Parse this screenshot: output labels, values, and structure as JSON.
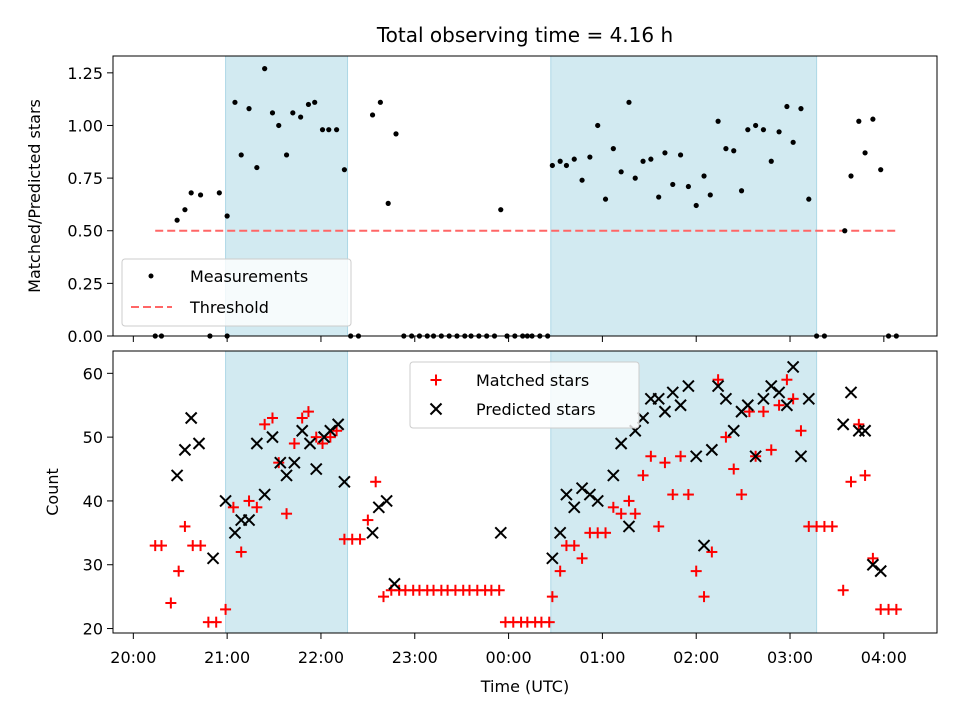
{
  "chart_data": [
    {
      "type": "scatter",
      "title": "Total observing time = 4.16 h",
      "xlabel": "",
      "ylabel": "Matched/Predicted stars",
      "ylim": [
        0,
        1.33
      ],
      "yticks": [
        "0.00",
        "0.25",
        "0.50",
        "0.75",
        "1.00",
        "1.25"
      ],
      "legend": {
        "placement": "lower-left",
        "entries": [
          "Measurements",
          "Threshold"
        ]
      },
      "colors": {
        "measurements": "#000000",
        "threshold": "#ff6666",
        "shade": "#add8e6"
      },
      "shaded_intervals": [
        [
          "20:59",
          "22:17"
        ],
        [
          "00:27",
          "03:17"
        ]
      ],
      "threshold": {
        "value": 0.5,
        "x": [
          "20:14",
          "04:08"
        ]
      },
      "measurements": [
        [
          "20:14",
          0
        ],
        [
          "20:18",
          0
        ],
        [
          "20:28",
          0.55
        ],
        [
          "20:33",
          0.6
        ],
        [
          "20:37",
          0.68
        ],
        [
          "20:43",
          0.67
        ],
        [
          "20:49",
          0
        ],
        [
          "20:55",
          0.68
        ],
        [
          "21:00",
          0
        ],
        [
          "21:00",
          0.57
        ],
        [
          "21:05",
          1.11
        ],
        [
          "21:09",
          0.86
        ],
        [
          "21:14",
          1.08
        ],
        [
          "21:19",
          0.8
        ],
        [
          "21:24",
          1.27
        ],
        [
          "21:29",
          1.06
        ],
        [
          "21:33",
          1.0
        ],
        [
          "21:38",
          0.86
        ],
        [
          "21:42",
          1.06
        ],
        [
          "21:47",
          1.04
        ],
        [
          "21:52",
          1.1
        ],
        [
          "21:56",
          1.11
        ],
        [
          "22:01",
          0.98
        ],
        [
          "22:05",
          0.98
        ],
        [
          "22:10",
          0.98
        ],
        [
          "22:15",
          0.79
        ],
        [
          "22:19",
          0
        ],
        [
          "22:24",
          0
        ],
        [
          "22:33",
          1.05
        ],
        [
          "22:38",
          1.11
        ],
        [
          "22:43",
          0.63
        ],
        [
          "22:48",
          0.96
        ],
        [
          "22:53",
          0
        ],
        [
          "22:58",
          0
        ],
        [
          "23:03",
          0
        ],
        [
          "23:08",
          0
        ],
        [
          "23:12",
          0
        ],
        [
          "23:17",
          0
        ],
        [
          "23:22",
          0
        ],
        [
          "23:27",
          0
        ],
        [
          "23:32",
          0
        ],
        [
          "23:36",
          0
        ],
        [
          "23:41",
          0
        ],
        [
          "23:46",
          0
        ],
        [
          "23:51",
          0
        ],
        [
          "23:55",
          0.6
        ],
        [
          "23:59",
          0
        ],
        [
          "00:04",
          0
        ],
        [
          "00:09",
          0
        ],
        [
          "00:12",
          0
        ],
        [
          "00:15",
          0
        ],
        [
          "00:20",
          0
        ],
        [
          "00:25",
          0
        ],
        [
          "00:28",
          0.81
        ],
        [
          "00:33",
          0.83
        ],
        [
          "00:37",
          0.81
        ],
        [
          "00:42",
          0.84
        ],
        [
          "00:47",
          0.74
        ],
        [
          "00:52",
          0.85
        ],
        [
          "00:57",
          1.0
        ],
        [
          "01:02",
          0.65
        ],
        [
          "01:07",
          0.89
        ],
        [
          "01:12",
          0.78
        ],
        [
          "01:17",
          1.11
        ],
        [
          "01:21",
          0.75
        ],
        [
          "01:26",
          0.83
        ],
        [
          "01:31",
          0.84
        ],
        [
          "01:36",
          0.66
        ],
        [
          "01:40",
          0.87
        ],
        [
          "01:45",
          0.72
        ],
        [
          "01:50",
          0.86
        ],
        [
          "01:55",
          0.71
        ],
        [
          "02:00",
          0.62
        ],
        [
          "02:05",
          0.76
        ],
        [
          "02:09",
          0.67
        ],
        [
          "02:14",
          1.02
        ],
        [
          "02:19",
          0.89
        ],
        [
          "02:24",
          0.88
        ],
        [
          "02:29",
          0.69
        ],
        [
          "02:33",
          0.98
        ],
        [
          "02:38",
          1.0
        ],
        [
          "02:43",
          0.98
        ],
        [
          "02:48",
          0.83
        ],
        [
          "02:53",
          0.97
        ],
        [
          "02:58",
          1.09
        ],
        [
          "03:02",
          0.92
        ],
        [
          "03:07",
          1.08
        ],
        [
          "03:12",
          0.65
        ],
        [
          "03:17",
          0
        ],
        [
          "03:22",
          0
        ],
        [
          "03:35",
          0.5
        ],
        [
          "03:39",
          0.76
        ],
        [
          "03:44",
          1.02
        ],
        [
          "03:48",
          0.87
        ],
        [
          "03:53",
          1.03
        ],
        [
          "03:58",
          0.79
        ],
        [
          "04:03",
          0
        ],
        [
          "04:08",
          0
        ]
      ]
    },
    {
      "type": "scatter",
      "title": "",
      "xlabel": "Time (UTC)",
      "ylabel": "Count",
      "ylim": [
        19.3,
        63.5
      ],
      "yticks": [
        "20",
        "30",
        "40",
        "50",
        "60"
      ],
      "xticks": [
        "20:00",
        "21:00",
        "22:00",
        "23:00",
        "00:00",
        "01:00",
        "02:00",
        "03:00",
        "04:00"
      ],
      "legend": {
        "placement": "upper-center",
        "entries": [
          "Matched stars",
          "Predicted stars"
        ]
      },
      "colors": {
        "matched": "#ff0000",
        "predicted": "#000000",
        "shade": "#add8e6"
      },
      "shaded_intervals": [
        [
          "20:59",
          "22:17"
        ],
        [
          "00:27",
          "03:17"
        ]
      ],
      "series": [
        {
          "name": "Matched stars",
          "points": [
            [
              "20:14",
              33
            ],
            [
              "20:18",
              33
            ],
            [
              "20:24",
              24
            ],
            [
              "20:29",
              29
            ],
            [
              "20:33",
              36
            ],
            [
              "20:38",
              33
            ],
            [
              "20:43",
              33
            ],
            [
              "20:48",
              21
            ],
            [
              "20:53",
              21
            ],
            [
              "20:59",
              23
            ],
            [
              "21:04",
              39
            ],
            [
              "21:09",
              32
            ],
            [
              "21:14",
              40
            ],
            [
              "21:19",
              39
            ],
            [
              "21:24",
              52
            ],
            [
              "21:29",
              53
            ],
            [
              "21:33",
              46
            ],
            [
              "21:38",
              38
            ],
            [
              "21:43",
              49
            ],
            [
              "21:48",
              53
            ],
            [
              "21:52",
              54
            ],
            [
              "21:57",
              50
            ],
            [
              "22:01",
              49
            ],
            [
              "22:06",
              50
            ],
            [
              "22:10",
              51
            ],
            [
              "22:15",
              34
            ],
            [
              "22:20",
              34
            ],
            [
              "22:25",
              34
            ],
            [
              "22:30",
              37
            ],
            [
              "22:35",
              43
            ],
            [
              "22:40",
              25
            ],
            [
              "22:45",
              26
            ],
            [
              "22:50",
              26
            ],
            [
              "22:54",
              26
            ],
            [
              "22:59",
              26
            ],
            [
              "23:03",
              26
            ],
            [
              "23:08",
              26
            ],
            [
              "23:12",
              26
            ],
            [
              "23:17",
              26
            ],
            [
              "23:21",
              26
            ],
            [
              "23:26",
              26
            ],
            [
              "23:31",
              26
            ],
            [
              "23:35",
              26
            ],
            [
              "23:40",
              26
            ],
            [
              "23:45",
              26
            ],
            [
              "23:49",
              26
            ],
            [
              "23:54",
              26
            ],
            [
              "23:58",
              21
            ],
            [
              "00:03",
              21
            ],
            [
              "00:08",
              21
            ],
            [
              "00:12",
              21
            ],
            [
              "00:17",
              21
            ],
            [
              "00:21",
              21
            ],
            [
              "00:26",
              21
            ],
            [
              "00:28",
              25
            ],
            [
              "00:33",
              29
            ],
            [
              "00:37",
              33
            ],
            [
              "00:42",
              33
            ],
            [
              "00:47",
              31
            ],
            [
              "00:52",
              35
            ],
            [
              "00:57",
              35
            ],
            [
              "01:02",
              35
            ],
            [
              "01:07",
              39
            ],
            [
              "01:12",
              38
            ],
            [
              "01:17",
              40
            ],
            [
              "01:21",
              38
            ],
            [
              "01:26",
              44
            ],
            [
              "01:31",
              47
            ],
            [
              "01:36",
              36
            ],
            [
              "01:40",
              46
            ],
            [
              "01:45",
              41
            ],
            [
              "01:50",
              47
            ],
            [
              "01:55",
              41
            ],
            [
              "02:00",
              29
            ],
            [
              "02:05",
              25
            ],
            [
              "02:10",
              32
            ],
            [
              "02:14",
              59
            ],
            [
              "02:19",
              50
            ],
            [
              "02:24",
              45
            ],
            [
              "02:29",
              41
            ],
            [
              "02:34",
              54
            ],
            [
              "02:38",
              47
            ],
            [
              "02:43",
              54
            ],
            [
              "02:48",
              48
            ],
            [
              "02:53",
              55
            ],
            [
              "02:58",
              59
            ],
            [
              "03:02",
              56
            ],
            [
              "03:07",
              51
            ],
            [
              "03:12",
              36
            ],
            [
              "03:17",
              36
            ],
            [
              "03:22",
              36
            ],
            [
              "03:27",
              36
            ],
            [
              "03:34",
              26
            ],
            [
              "03:39",
              43
            ],
            [
              "03:44",
              52
            ],
            [
              "03:48",
              44
            ],
            [
              "03:53",
              31
            ],
            [
              "03:58",
              23
            ],
            [
              "04:03",
              23
            ],
            [
              "04:08",
              23
            ]
          ]
        },
        {
          "name": "Predicted stars",
          "points": [
            [
              "20:28",
              44
            ],
            [
              "20:33",
              48
            ],
            [
              "20:37",
              53
            ],
            [
              "20:42",
              49
            ],
            [
              "20:51",
              31
            ],
            [
              "20:59",
              40
            ],
            [
              "21:05",
              35
            ],
            [
              "21:09",
              37
            ],
            [
              "21:14",
              37
            ],
            [
              "21:19",
              49
            ],
            [
              "21:24",
              41
            ],
            [
              "21:29",
              50
            ],
            [
              "21:34",
              46
            ],
            [
              "21:38",
              44
            ],
            [
              "21:43",
              46
            ],
            [
              "21:48",
              51
            ],
            [
              "21:53",
              49
            ],
            [
              "21:57",
              45
            ],
            [
              "22:02",
              50
            ],
            [
              "22:06",
              51
            ],
            [
              "22:11",
              52
            ],
            [
              "22:15",
              43
            ],
            [
              "22:33",
              35
            ],
            [
              "22:37",
              39
            ],
            [
              "22:42",
              40
            ],
            [
              "22:47",
              27
            ],
            [
              "23:55",
              35
            ],
            [
              "00:28",
              31
            ],
            [
              "00:33",
              35
            ],
            [
              "00:37",
              41
            ],
            [
              "00:42",
              39
            ],
            [
              "00:47",
              42
            ],
            [
              "00:52",
              41
            ],
            [
              "00:57",
              40
            ],
            [
              "01:07",
              44
            ],
            [
              "01:12",
              49
            ],
            [
              "01:17",
              36
            ],
            [
              "01:21",
              51
            ],
            [
              "01:26",
              53
            ],
            [
              "01:31",
              56
            ],
            [
              "01:36",
              56
            ],
            [
              "01:40",
              54
            ],
            [
              "01:45",
              57
            ],
            [
              "01:50",
              55
            ],
            [
              "01:55",
              58
            ],
            [
              "02:00",
              47
            ],
            [
              "02:05",
              33
            ],
            [
              "02:10",
              48
            ],
            [
              "02:14",
              58
            ],
            [
              "02:19",
              56
            ],
            [
              "02:24",
              51
            ],
            [
              "02:29",
              54
            ],
            [
              "02:33",
              55
            ],
            [
              "02:38",
              47
            ],
            [
              "02:43",
              56
            ],
            [
              "02:48",
              58
            ],
            [
              "02:53",
              57
            ],
            [
              "02:58",
              55
            ],
            [
              "03:02",
              61
            ],
            [
              "03:07",
              47
            ],
            [
              "03:12",
              56
            ],
            [
              "03:34",
              52
            ],
            [
              "03:39",
              57
            ],
            [
              "03:44",
              51
            ],
            [
              "03:48",
              51
            ],
            [
              "03:53",
              30
            ],
            [
              "03:58",
              29
            ]
          ]
        }
      ]
    }
  ]
}
